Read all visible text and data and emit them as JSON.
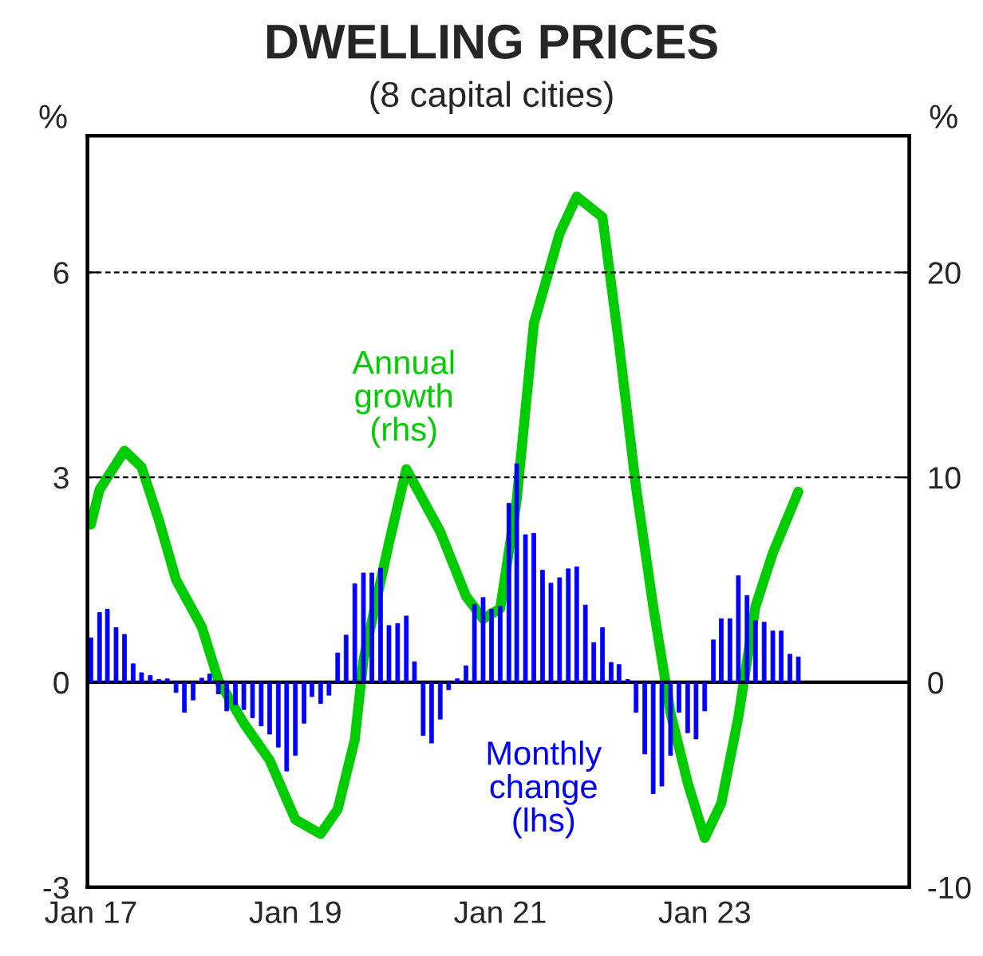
{
  "chart_data": {
    "type": "bar",
    "title": "DWELLING PRICES",
    "subtitle": "(8 capital cities)",
    "ylabel": "%",
    "y2label": "%",
    "xlim": [
      "2016-12-20",
      "2024-12-31"
    ],
    "xticks": [
      {
        "value": "2017-01",
        "label": "Jan 17"
      },
      {
        "value": "2019-01",
        "label": "Jan 19"
      },
      {
        "value": "2021-01",
        "label": "Jan 21"
      },
      {
        "value": "2023-01",
        "label": "Jan 23"
      }
    ],
    "ylim": [
      -3,
      8
    ],
    "yticks": [
      -3,
      0,
      3,
      6,
      {
        "value": 8,
        "label": null
      }
    ],
    "y2lim": [
      -10,
      26.67
    ],
    "y2ticks": [
      -10,
      0,
      10,
      20
    ],
    "grid": "y",
    "ref_lines": [
      {
        "axis": "y",
        "value": 0,
        "color": "#000000",
        "line_style": "solid"
      }
    ],
    "series": [
      {
        "name": "Monthly\nchange\n(lhs)",
        "color": "#0000ff",
        "x": [
          "2017-01",
          "2017-02",
          "2017-03",
          "2017-04",
          "2017-05",
          "2017-06",
          "2017-07",
          "2017-08",
          "2017-09",
          "2017-10",
          "2017-11",
          "2017-12",
          "2018-01",
          "2018-02",
          "2018-03",
          "2018-04",
          "2018-05",
          "2018-06",
          "2018-07",
          "2018-08",
          "2018-09",
          "2018-10",
          "2018-11",
          "2018-12",
          "2019-01",
          "2019-02",
          "2019-03",
          "2019-04",
          "2019-05",
          "2019-06",
          "2019-07",
          "2019-08",
          "2019-09",
          "2019-10",
          "2019-11",
          "2019-12",
          "2020-01",
          "2020-02",
          "2020-03",
          "2020-04",
          "2020-05",
          "2020-06",
          "2020-07",
          "2020-08",
          "2020-09",
          "2020-10",
          "2020-11",
          "2020-12",
          "2021-01",
          "2021-02",
          "2021-03",
          "2021-04",
          "2021-05",
          "2021-06",
          "2021-07",
          "2021-08",
          "2021-09",
          "2021-10",
          "2021-11",
          "2021-12",
          "2022-01",
          "2022-02",
          "2022-03",
          "2022-04",
          "2022-05",
          "2022-06",
          "2022-07",
          "2022-08",
          "2022-09",
          "2022-10",
          "2022-11",
          "2022-12",
          "2023-01",
          "2023-02",
          "2023-03",
          "2023-04",
          "2023-05",
          "2023-06",
          "2023-07",
          "2023-08",
          "2023-09",
          "2023-10",
          "2023-11",
          "2023-12"
        ],
        "values": [
          0.65,
          1.02,
          1.07,
          0.8,
          0.7,
          0.27,
          0.14,
          0.1,
          0.04,
          0.05,
          -0.15,
          -0.44,
          -0.26,
          0.06,
          0.12,
          -0.17,
          -0.42,
          -0.33,
          -0.4,
          -0.52,
          -0.64,
          -0.76,
          -0.95,
          -1.3,
          -1.07,
          -0.6,
          -0.21,
          -0.31,
          -0.19,
          0.43,
          0.69,
          1.44,
          1.6,
          1.6,
          1.67,
          0.83,
          0.86,
          0.97,
          0.3,
          -0.78,
          -0.89,
          -0.54,
          -0.11,
          0.05,
          0.24,
          1.14,
          1.24,
          1.07,
          1.11,
          2.62,
          3.2,
          2.16,
          2.18,
          1.64,
          1.45,
          1.53,
          1.66,
          1.69,
          1.13,
          0.58,
          0.8,
          0.29,
          0.26,
          0.04,
          -0.44,
          -1.05,
          -1.63,
          -1.52,
          -1.07,
          -0.44,
          -0.74,
          -0.83,
          -0.42,
          0.62,
          0.93,
          0.93,
          1.56,
          1.27,
          0.9,
          0.88,
          0.75,
          0.75,
          0.41,
          0.37
        ]
      },
      {
        "name": "Annual\ngrowth\n(rhs)",
        "type": "line",
        "axis": "y2",
        "color": "#00cc00",
        "x": [
          "2017-01",
          "2017-02",
          "2017-05",
          "2017-07",
          "2017-09",
          "2017-11",
          "2018-02",
          "2018-04",
          "2018-07",
          "2018-10",
          "2019-01",
          "2019-04",
          "2019-06",
          "2019-08",
          "2019-09",
          "2019-12",
          "2020-02",
          "2020-06",
          "2020-09",
          "2020-11",
          "2021-01",
          "2021-03",
          "2021-05",
          "2021-08",
          "2021-10",
          "2022-01",
          "2022-03",
          "2022-05",
          "2022-07",
          "2022-09",
          "2022-11",
          "2023-01",
          "2023-03",
          "2023-05",
          "2023-07",
          "2023-09",
          "2023-12"
        ],
        "values": [
          7.7,
          9.4,
          11.3,
          10.5,
          7.9,
          5.0,
          2.7,
          0.1,
          -2.0,
          -3.8,
          -6.7,
          -7.4,
          -6.2,
          -2.8,
          1.1,
          6.8,
          10.4,
          7.35,
          4.2,
          3.1,
          3.6,
          8.9,
          17.5,
          21.9,
          23.7,
          22.7,
          16.5,
          9.5,
          3.7,
          -1.5,
          -4.9,
          -7.6,
          -5.9,
          -1.7,
          3.7,
          6.3,
          9.3
        ]
      }
    ]
  }
}
